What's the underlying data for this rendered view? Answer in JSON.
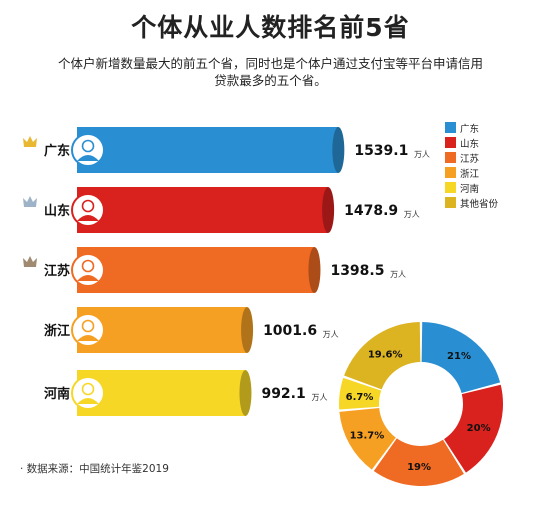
{
  "header": {
    "title": "个体从业人数排名前5省",
    "subtitle_line1": "个体户新增数量最大的前五个省，同时也是个体户通过支付宝等平台申请信用",
    "subtitle_line2": "贷款最多的五个省。"
  },
  "unit": "万人",
  "colors": {
    "广东": "#2a8fd2",
    "山东": "#d9221e",
    "江苏": "#ef6a22",
    "浙江": "#f6a023",
    "河南": "#f7d726",
    "其他省份": "#dcb321"
  },
  "chart_data": [
    {
      "type": "bar",
      "categories": [
        "广东",
        "山东",
        "江苏",
        "浙江",
        "河南"
      ],
      "values": [
        1539.1,
        1478.9,
        1398.5,
        1001.6,
        992.1
      ],
      "value_labels": [
        "1539.1",
        "1478.9",
        "1398.5",
        "1001.6",
        "992.1"
      ],
      "unit": "万人",
      "orientation": "horizontal",
      "crowns": [
        "gold",
        "silver",
        "bronze"
      ]
    },
    {
      "type": "pie",
      "donut": true,
      "labels": [
        "广东",
        "山东",
        "江苏",
        "浙江",
        "河南",
        "其他省份"
      ],
      "values": [
        21,
        20,
        19,
        13.7,
        6.7,
        19.6
      ],
      "value_labels": [
        "21%",
        "20%",
        "19%",
        "13.7%",
        "6.7%",
        "19.6%"
      ],
      "legend_position": "top-right"
    }
  ],
  "source": "· 数据来源：中国统计年鉴2019"
}
